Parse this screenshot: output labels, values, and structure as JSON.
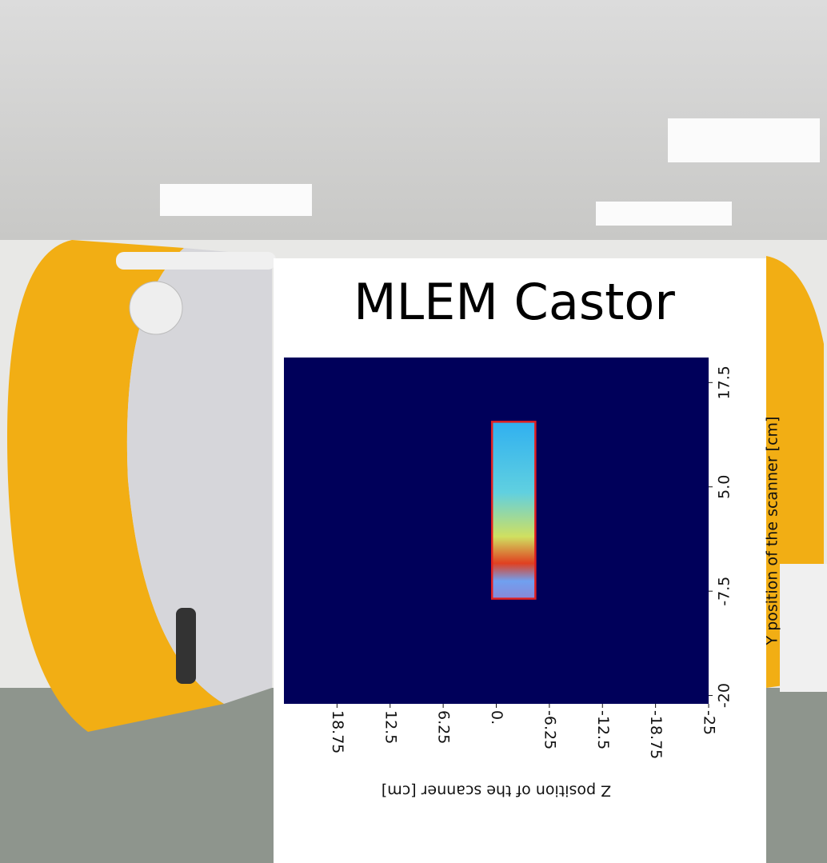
{
  "chart_data": {
    "type": "heatmap",
    "title": "MLEM  Castor",
    "x_label": "Z position of the scanner [cm]",
    "y_label": "Y position of the scanner [cm]",
    "xlim": [
      25,
      -25
    ],
    "xticks": [
      18.75,
      12.5,
      6.25,
      {
        "value": 0,
        "label": "0."
      },
      -6.25,
      -12.5,
      -18.75,
      -25
    ],
    "ylim": [
      -21,
      20.5
    ],
    "yticks": [
      17.5,
      {
        "value": 5,
        "label": "5.0"
      },
      -7.5,
      -20
    ],
    "background_color": "#00005a",
    "region": {
      "x": [
        0.5,
        -4.6
      ],
      "y": [
        -8.4,
        12.8
      ],
      "color": "#e02020"
    }
  }
}
